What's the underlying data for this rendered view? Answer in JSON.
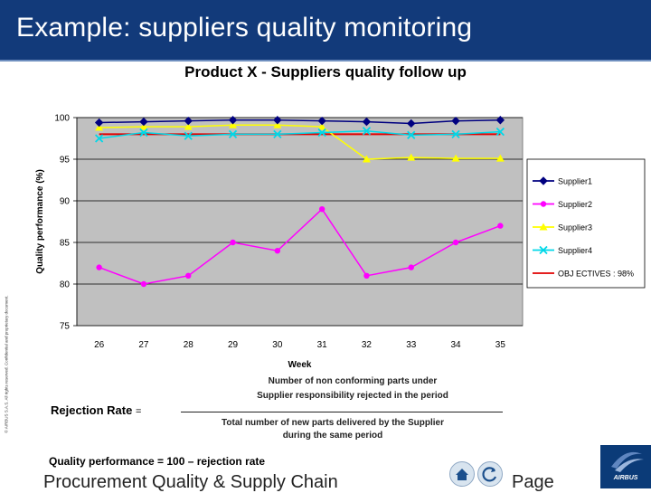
{
  "header": {
    "title": "Example: suppliers quality monitoring"
  },
  "side_note": "© AIRBUS S.A.S. All rights reserved. Confidential and proprietary document.",
  "formula": {
    "rejection_rate_label": "Rejection Rate",
    "equals": "=",
    "numerator_line1": "Number of non conforming parts under",
    "numerator_line2": "Supplier responsibility rejected in the period",
    "denominator_line1": "Total number of new parts delivered by the Supplier",
    "denominator_line2": "during the same period",
    "quality_performance": "Quality performance = 100 – rejection rate"
  },
  "footer": {
    "text": "Procurement Quality & Supply Chain",
    "page_label": "Page",
    "logo_text": "AIRBUS"
  },
  "colors": {
    "header_bg": "#123a7a",
    "plot_bg": "#c0c0c0"
  },
  "chart_data": {
    "type": "line",
    "title": "Product X  - Suppliers quality follow up",
    "xlabel": "Week",
    "ylabel": "Quality performance (%)",
    "categories": [
      "26",
      "27",
      "28",
      "29",
      "30",
      "31",
      "32",
      "33",
      "34",
      "35"
    ],
    "ylim": [
      75,
      100
    ],
    "yticks": [
      75,
      80,
      85,
      90,
      95,
      100
    ],
    "grid": true,
    "legend_position": "right",
    "series": [
      {
        "name": "Supplier1",
        "color": "#000080",
        "marker": "diamond",
        "values": [
          99.4,
          99.5,
          99.6,
          99.7,
          99.7,
          99.6,
          99.5,
          99.3,
          99.6,
          99.7
        ]
      },
      {
        "name": "Supplier2",
        "color": "#ff00ff",
        "marker": "circle",
        "values": [
          82,
          80,
          81,
          85,
          84,
          89,
          81,
          82,
          85,
          87
        ]
      },
      {
        "name": "Supplier3",
        "color": "#ffff00",
        "marker": "triangle",
        "values": [
          98.8,
          98.9,
          98.9,
          99.1,
          99.1,
          98.9,
          95,
          95.2,
          95.1,
          95.1
        ]
      },
      {
        "name": "Supplier4",
        "color": "#00d8e8",
        "marker": "x",
        "values": [
          97.5,
          98.2,
          97.8,
          98,
          98,
          98.2,
          98.4,
          97.9,
          98,
          98.3
        ]
      },
      {
        "name": "OBJ ECTIVES : 98%",
        "color": "#e00000",
        "marker": "none",
        "values": [
          98,
          98,
          98,
          98,
          98,
          98,
          98,
          98,
          98,
          98
        ]
      }
    ]
  }
}
